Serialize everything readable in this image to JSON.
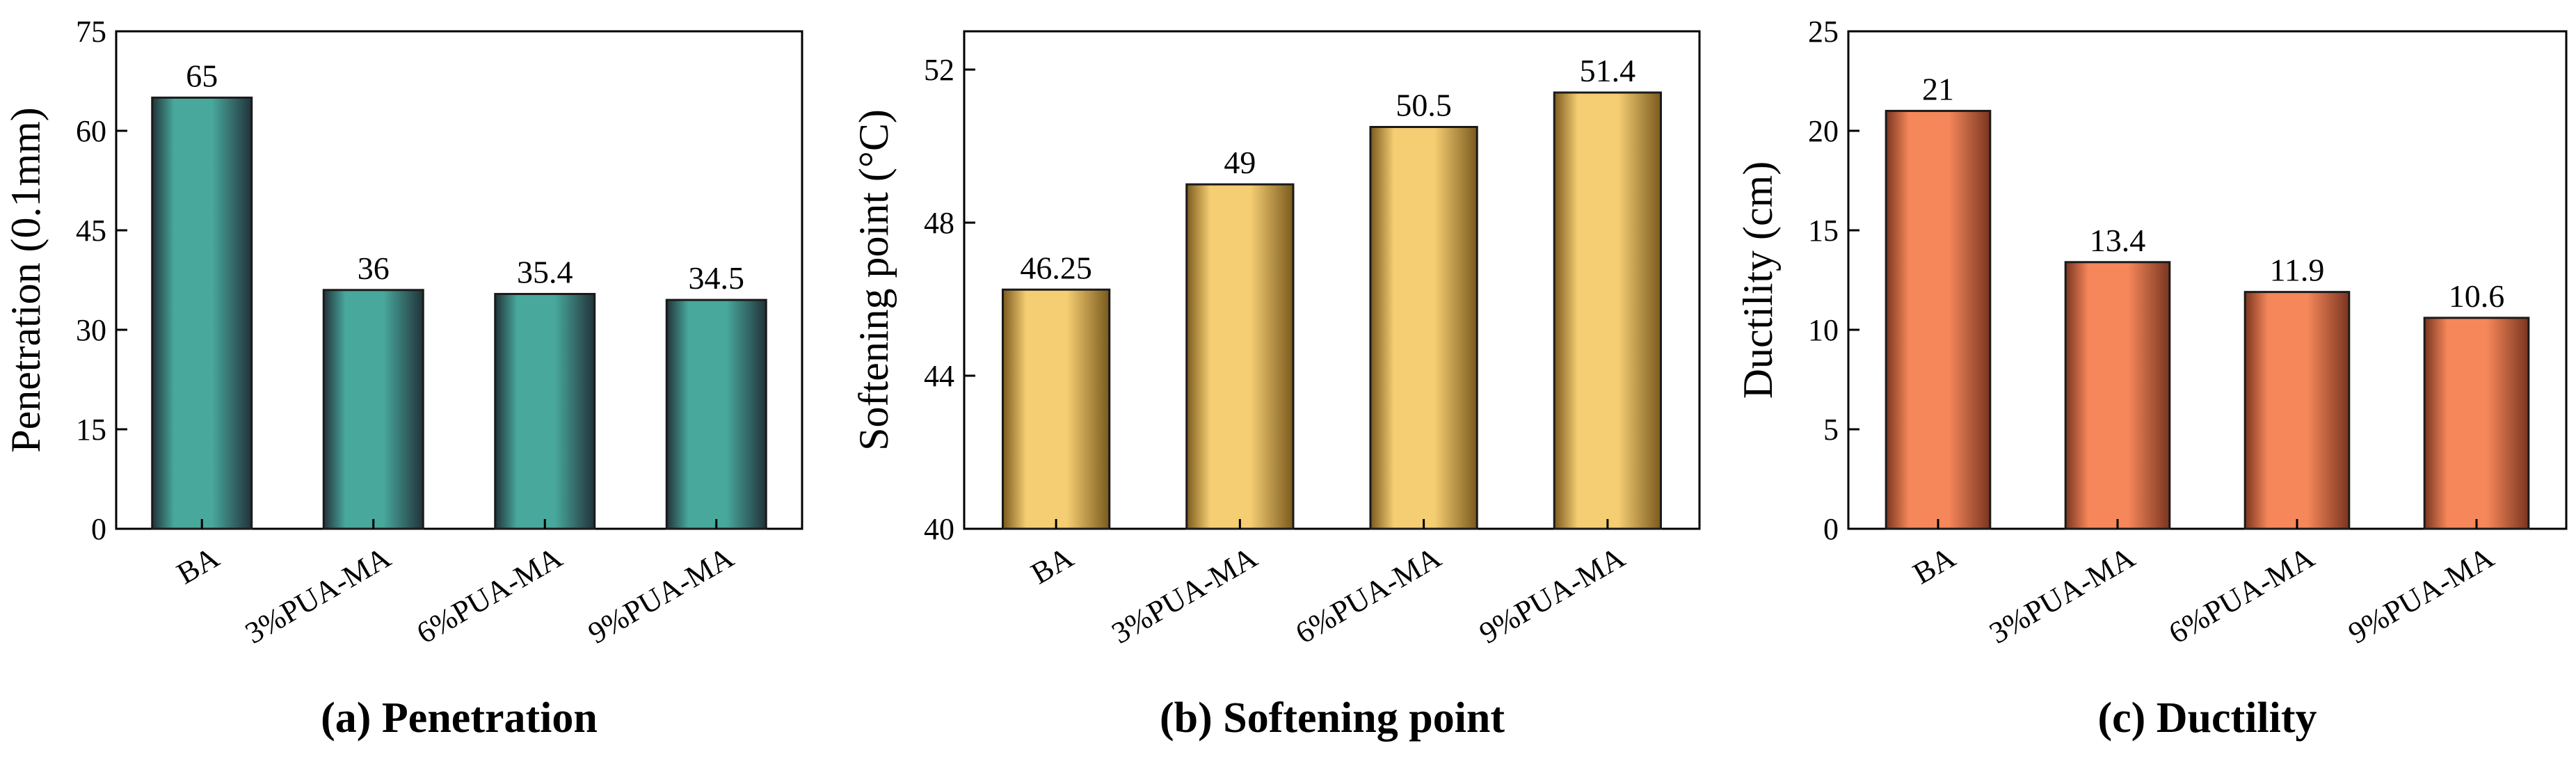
{
  "chart_data": [
    {
      "type": "bar",
      "caption": "(a) Penetration",
      "ylabel": "Penetration (0.1mm)",
      "xlabel": "",
      "categories": [
        "BA",
        "3%PUA-MA",
        "6%PUA-MA",
        "9%PUA-MA"
      ],
      "values": [
        65,
        36,
        35.4,
        34.5
      ],
      "value_labels": [
        "65",
        "36",
        "35.4",
        "34.5"
      ],
      "ylim": [
        0,
        75
      ],
      "yticks": [
        "0",
        "15",
        "30",
        "45",
        "60",
        "75"
      ],
      "grid": false,
      "bar_colors": {
        "edge": "#22333a",
        "mid": "#48a89c"
      }
    },
    {
      "type": "bar",
      "caption": "(b) Softening point",
      "ylabel": "Softening point (°C)",
      "xlabel": "",
      "categories": [
        "BA",
        "3%PUA-MA",
        "6%PUA-MA",
        "9%PUA-MA"
      ],
      "values": [
        46.25,
        49,
        50.5,
        51.4
      ],
      "value_labels": [
        "46.25",
        "49",
        "50.5",
        "51.4"
      ],
      "ylim": [
        40,
        53
      ],
      "yticks": [
        "40",
        "44",
        "48",
        "52"
      ],
      "grid": false,
      "bar_colors": {
        "edge": "#7a5a1e",
        "mid": "#f5cd72"
      }
    },
    {
      "type": "bar",
      "caption": "(c) Ductility",
      "ylabel": "Ductility (cm)",
      "xlabel": "",
      "categories": [
        "BA",
        "3%PUA-MA",
        "6%PUA-MA",
        "9%PUA-MA"
      ],
      "values": [
        21,
        13.4,
        11.9,
        10.6
      ],
      "value_labels": [
        "21",
        "13.4",
        "11.9",
        "10.6"
      ],
      "ylim": [
        0,
        25
      ],
      "yticks": [
        "0",
        "5",
        "10",
        "15",
        "20",
        "25"
      ],
      "grid": false,
      "bar_colors": {
        "edge": "#7a3520",
        "mid": "#f5875a"
      }
    }
  ]
}
